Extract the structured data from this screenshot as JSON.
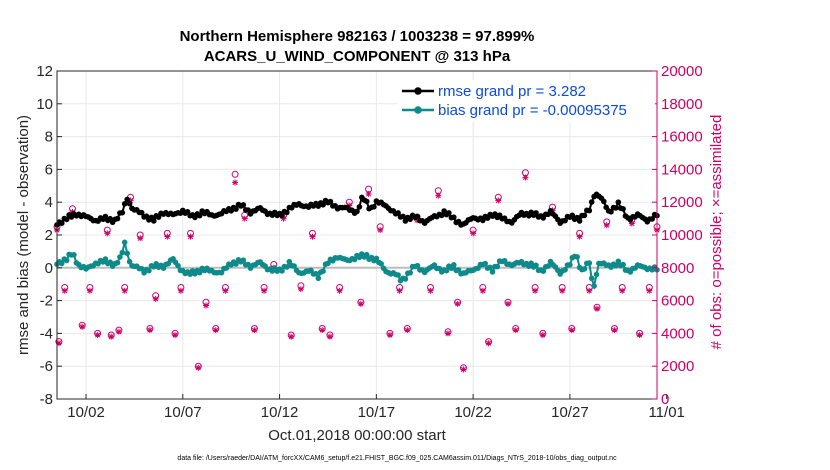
{
  "chart_data": {
    "type": "line",
    "title": "Northern Hemisphere 982163 / 1003238 = 97.899%",
    "subtitle": "ACARS_U_WIND_COMPONENT @ 313 hPa",
    "xlabel": "Oct.01,2018 00:00:00 start",
    "ylabel": "rmse and bias (model - observation)",
    "ylabel_right": "# of obs: o=possible; ×=assimilated",
    "xlim": [
      0.5,
      31.5
    ],
    "ylim": [
      -8,
      12
    ],
    "ylim_right": [
      0,
      20000
    ],
    "x_ticks": [
      2,
      7,
      12,
      17,
      22,
      27,
      32
    ],
    "x_tick_labels": [
      "10/02",
      "10/07",
      "10/12",
      "10/17",
      "10/22",
      "10/27",
      "11/01"
    ],
    "y_ticks": [
      -8,
      -6,
      -4,
      -2,
      0,
      2,
      4,
      6,
      8,
      10,
      12
    ],
    "y_tick_labels": [
      "-8",
      "-6",
      "-4",
      "-2",
      "0",
      "2",
      "4",
      "6",
      "8",
      "10",
      "12"
    ],
    "y_ticks_right": [
      0,
      2000,
      4000,
      6000,
      8000,
      10000,
      12000,
      14000,
      16000,
      18000,
      20000
    ],
    "y_tick_labels_right": [
      "0",
      "2000",
      "4000",
      "6000",
      "8000",
      "10000",
      "12000",
      "14000",
      "16000",
      "18000",
      "20000"
    ],
    "grid": true,
    "legend_position": "top-right",
    "colors": {
      "rmse": "#000000",
      "bias": "#0f8a8a",
      "obs": "#cc0066",
      "right_axis": "#cc0066",
      "legend_text": "#0b4be0"
    },
    "series": [
      {
        "name": "rmse",
        "legend_label": "rmse grand pr = 3.282",
        "control_points": [
          [
            0.5,
            2.7
          ],
          [
            1.0,
            3.0
          ],
          [
            1.5,
            3.3
          ],
          [
            2.0,
            3.1
          ],
          [
            2.5,
            2.9
          ],
          [
            3.0,
            3.0
          ],
          [
            3.5,
            2.9
          ],
          [
            3.9,
            3.4
          ],
          [
            4.1,
            4.3
          ],
          [
            4.4,
            3.6
          ],
          [
            5.0,
            3.2
          ],
          [
            5.5,
            2.9
          ],
          [
            6.0,
            3.4
          ],
          [
            6.5,
            3.2
          ],
          [
            7.0,
            3.5
          ],
          [
            7.5,
            3.1
          ],
          [
            8.0,
            3.4
          ],
          [
            8.5,
            3.2
          ],
          [
            9.0,
            3.3
          ],
          [
            9.5,
            3.6
          ],
          [
            10.0,
            3.8
          ],
          [
            10.5,
            3.4
          ],
          [
            11.0,
            3.6
          ],
          [
            11.5,
            3.3
          ],
          [
            12.0,
            3.2
          ],
          [
            12.5,
            3.6
          ],
          [
            13.0,
            3.9
          ],
          [
            13.5,
            3.7
          ],
          [
            14.0,
            3.9
          ],
          [
            14.5,
            4.0
          ],
          [
            15.0,
            3.7
          ],
          [
            15.5,
            3.6
          ],
          [
            16.0,
            3.4
          ],
          [
            16.3,
            4.3
          ],
          [
            16.7,
            3.6
          ],
          [
            17.0,
            4.0
          ],
          [
            17.5,
            3.8
          ],
          [
            18.0,
            3.3
          ],
          [
            18.5,
            3.0
          ],
          [
            19.0,
            3.1
          ],
          [
            19.5,
            2.8
          ],
          [
            20.0,
            3.1
          ],
          [
            20.5,
            3.4
          ],
          [
            21.0,
            3.0
          ],
          [
            21.5,
            2.6
          ],
          [
            22.0,
            3.1
          ],
          [
            22.5,
            2.9
          ],
          [
            23.0,
            3.3
          ],
          [
            23.5,
            3.0
          ],
          [
            24.0,
            2.8
          ],
          [
            24.5,
            3.3
          ],
          [
            25.0,
            3.3
          ],
          [
            25.5,
            3.1
          ],
          [
            26.0,
            3.4
          ],
          [
            26.5,
            2.8
          ],
          [
            27.0,
            3.1
          ],
          [
            27.5,
            3.0
          ],
          [
            28.0,
            3.5
          ],
          [
            28.3,
            4.6
          ],
          [
            28.6,
            4.3
          ],
          [
            29.0,
            3.4
          ],
          [
            29.5,
            3.9
          ],
          [
            30.0,
            3.0
          ],
          [
            30.5,
            3.2
          ],
          [
            31.0,
            2.9
          ],
          [
            31.5,
            3.2
          ]
        ]
      },
      {
        "name": "bias",
        "legend_label": "bias grand pr = -0.00095375",
        "control_points": [
          [
            0.5,
            0.3
          ],
          [
            1.0,
            0.5
          ],
          [
            1.3,
            0.9
          ],
          [
            1.6,
            0.2
          ],
          [
            2.0,
            -0.1
          ],
          [
            2.5,
            0.3
          ],
          [
            3.0,
            0.4
          ],
          [
            3.5,
            0.2
          ],
          [
            3.8,
            0.6
          ],
          [
            4.0,
            1.5
          ],
          [
            4.3,
            0.2
          ],
          [
            5.0,
            -0.2
          ],
          [
            5.5,
            0.1
          ],
          [
            6.0,
            0.1
          ],
          [
            6.5,
            0.5
          ],
          [
            6.9,
            -0.1
          ],
          [
            7.3,
            -0.4
          ],
          [
            8.0,
            -0.1
          ],
          [
            8.5,
            -0.2
          ],
          [
            9.0,
            -0.3
          ],
          [
            9.5,
            0.3
          ],
          [
            10.0,
            0.4
          ],
          [
            10.5,
            0.1
          ],
          [
            11.0,
            0.3
          ],
          [
            11.5,
            -0.1
          ],
          [
            12.0,
            -0.2
          ],
          [
            12.5,
            0.3
          ],
          [
            13.0,
            -0.3
          ],
          [
            13.5,
            -0.2
          ],
          [
            14.0,
            -0.5
          ],
          [
            14.5,
            0.3
          ],
          [
            15.0,
            0.7
          ],
          [
            15.5,
            0.4
          ],
          [
            16.0,
            0.7
          ],
          [
            16.5,
            0.7
          ],
          [
            17.0,
            0.5
          ],
          [
            17.5,
            -0.2
          ],
          [
            18.0,
            -0.4
          ],
          [
            18.3,
            -0.8
          ],
          [
            18.6,
            -0.4
          ],
          [
            19.0,
            0.1
          ],
          [
            19.5,
            -0.2
          ],
          [
            20.0,
            0.1
          ],
          [
            20.5,
            -0.2
          ],
          [
            21.0,
            0.1
          ],
          [
            21.5,
            -0.4
          ],
          [
            22.0,
            -0.1
          ],
          [
            22.5,
            0.2
          ],
          [
            23.0,
            -0.1
          ],
          [
            23.5,
            0.4
          ],
          [
            24.0,
            0.2
          ],
          [
            24.5,
            0.3
          ],
          [
            25.0,
            0.2
          ],
          [
            25.5,
            -0.2
          ],
          [
            26.0,
            0.3
          ],
          [
            26.5,
            -0.3
          ],
          [
            27.0,
            0.2
          ],
          [
            27.3,
            0.9
          ],
          [
            27.6,
            -0.2
          ],
          [
            28.0,
            0.3
          ],
          [
            28.2,
            -1.3
          ],
          [
            28.5,
            0.3
          ],
          [
            29.0,
            0.1
          ],
          [
            29.5,
            0.3
          ],
          [
            30.0,
            -0.2
          ],
          [
            30.5,
            0.1
          ],
          [
            31.0,
            0.0
          ],
          [
            31.5,
            -0.1
          ]
        ]
      },
      {
        "name": "obs_possible",
        "marker": "o",
        "points": [
          [
            0.5,
            10500
          ],
          [
            0.6,
            3500
          ],
          [
            0.9,
            6800
          ],
          [
            1.3,
            11600
          ],
          [
            1.8,
            4500
          ],
          [
            2.2,
            6800
          ],
          [
            2.6,
            4000
          ],
          [
            3.1,
            10300
          ],
          [
            3.3,
            3900
          ],
          [
            3.7,
            4200
          ],
          [
            4.0,
            6800
          ],
          [
            4.3,
            12300
          ],
          [
            4.8,
            10000
          ],
          [
            5.3,
            4300
          ],
          [
            5.6,
            6300
          ],
          [
            6.2,
            10100
          ],
          [
            6.6,
            4000
          ],
          [
            6.9,
            6800
          ],
          [
            7.4,
            10100
          ],
          [
            7.8,
            2000
          ],
          [
            8.2,
            5900
          ],
          [
            8.7,
            4300
          ],
          [
            9.2,
            6800
          ],
          [
            9.7,
            13700
          ],
          [
            10.2,
            11200
          ],
          [
            10.7,
            4300
          ],
          [
            11.2,
            6800
          ],
          [
            11.7,
            8200
          ],
          [
            12.2,
            11200
          ],
          [
            12.6,
            3900
          ],
          [
            13.1,
            6900
          ],
          [
            13.7,
            10100
          ],
          [
            14.2,
            4300
          ],
          [
            14.6,
            3900
          ],
          [
            15.1,
            6800
          ],
          [
            15.6,
            12000
          ],
          [
            16.2,
            5900
          ],
          [
            16.6,
            12800
          ],
          [
            17.2,
            10500
          ],
          [
            17.7,
            4000
          ],
          [
            18.2,
            6800
          ],
          [
            18.6,
            4300
          ],
          [
            19.1,
            11100
          ],
          [
            19.8,
            6800
          ],
          [
            20.2,
            12700
          ],
          [
            20.7,
            4100
          ],
          [
            21.2,
            5900
          ],
          [
            21.5,
            1900
          ],
          [
            22.0,
            10300
          ],
          [
            22.5,
            6800
          ],
          [
            22.8,
            3500
          ],
          [
            23.3,
            12300
          ],
          [
            23.8,
            5900
          ],
          [
            24.2,
            4300
          ],
          [
            24.7,
            13800
          ],
          [
            25.2,
            6800
          ],
          [
            25.6,
            4000
          ],
          [
            26.1,
            11700
          ],
          [
            26.6,
            6800
          ],
          [
            27.1,
            4300
          ],
          [
            27.5,
            10100
          ],
          [
            28.0,
            6800
          ],
          [
            28.4,
            5600
          ],
          [
            28.9,
            10800
          ],
          [
            29.3,
            4300
          ],
          [
            29.7,
            6800
          ],
          [
            30.2,
            10900
          ],
          [
            30.6,
            4000
          ],
          [
            31.1,
            6800
          ],
          [
            31.5,
            10500
          ]
        ]
      },
      {
        "name": "obs_assimilated",
        "marker": "*",
        "points": [
          [
            0.5,
            10300
          ],
          [
            0.6,
            3400
          ],
          [
            0.9,
            6600
          ],
          [
            1.3,
            11400
          ],
          [
            1.8,
            4400
          ],
          [
            2.2,
            6600
          ],
          [
            2.6,
            3900
          ],
          [
            3.1,
            10100
          ],
          [
            3.3,
            3800
          ],
          [
            3.7,
            4100
          ],
          [
            4.0,
            6600
          ],
          [
            4.3,
            12100
          ],
          [
            4.8,
            9800
          ],
          [
            5.3,
            4200
          ],
          [
            5.6,
            6100
          ],
          [
            6.2,
            9900
          ],
          [
            6.6,
            3900
          ],
          [
            6.9,
            6600
          ],
          [
            7.4,
            9900
          ],
          [
            7.8,
            1900
          ],
          [
            8.2,
            5700
          ],
          [
            8.7,
            4200
          ],
          [
            9.2,
            6600
          ],
          [
            9.7,
            13200
          ],
          [
            10.2,
            11000
          ],
          [
            10.7,
            4200
          ],
          [
            11.2,
            6600
          ],
          [
            11.7,
            8000
          ],
          [
            12.2,
            11000
          ],
          [
            12.6,
            3800
          ],
          [
            13.1,
            6700
          ],
          [
            13.7,
            9900
          ],
          [
            14.2,
            4200
          ],
          [
            14.6,
            3800
          ],
          [
            15.1,
            6600
          ],
          [
            15.6,
            11800
          ],
          [
            16.2,
            5800
          ],
          [
            16.6,
            12500
          ],
          [
            17.2,
            10300
          ],
          [
            17.7,
            3900
          ],
          [
            18.2,
            6600
          ],
          [
            18.6,
            4200
          ],
          [
            19.1,
            10900
          ],
          [
            19.8,
            6600
          ],
          [
            20.2,
            12400
          ],
          [
            20.7,
            4000
          ],
          [
            21.2,
            5800
          ],
          [
            21.5,
            1800
          ],
          [
            22.0,
            10100
          ],
          [
            22.5,
            6600
          ],
          [
            22.8,
            3400
          ],
          [
            23.3,
            12100
          ],
          [
            23.8,
            5800
          ],
          [
            24.2,
            4200
          ],
          [
            24.7,
            13500
          ],
          [
            25.2,
            6600
          ],
          [
            25.6,
            3900
          ],
          [
            26.1,
            11500
          ],
          [
            26.6,
            6600
          ],
          [
            27.1,
            4200
          ],
          [
            27.5,
            9900
          ],
          [
            28.0,
            6600
          ],
          [
            28.4,
            5500
          ],
          [
            28.9,
            10600
          ],
          [
            29.3,
            4200
          ],
          [
            29.7,
            6600
          ],
          [
            30.2,
            10700
          ],
          [
            30.6,
            3900
          ],
          [
            31.1,
            6600
          ],
          [
            31.5,
            10300
          ]
        ]
      }
    ],
    "footnote": "data file: /Users/raeder/DAI/ATM_forcXX/CAM6_setup/f.e21.FHIST_BGC.f09_025.CAM6assim.011/Diags_NTrS_2018-10/obs_diag_output.nc"
  }
}
